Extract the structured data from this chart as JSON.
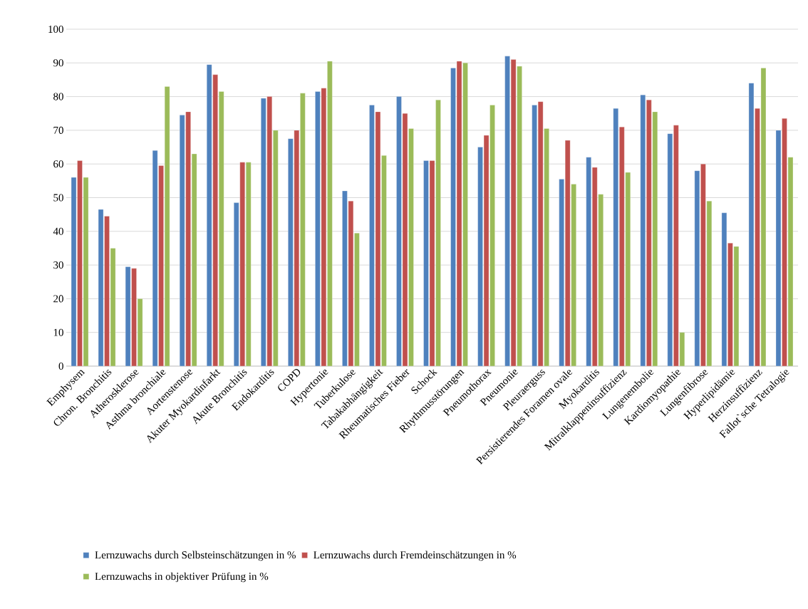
{
  "chart_data": {
    "type": "bar",
    "categories": [
      "Emphysem",
      "Chron. Bronchitis",
      "Atherosklerose",
      "Asthma bronchiale",
      "Aortenstenose",
      "Akuter Myokardinfarkt",
      "Akute Bronchitis",
      "Endokarditis",
      "COPD",
      "Hypertonie",
      "Tuberkulose",
      "Tabakabhängigkeit",
      "Rheumatisches Fieber",
      "Schock",
      "Rhythmusstörungen",
      "Pneumothorax",
      "Pneumonie",
      "Pleuraerguss",
      "Persistierendes Foramen ovale",
      "Myokarditis",
      "Mitralklappeninsuffizienz",
      "Lungenembolie",
      "Kardiomyopathie",
      "Lungenfibrose",
      "Hyperlipidämie",
      "Herzinsuffizienz",
      "Fallot`sche Tetralogie"
    ],
    "series": [
      {
        "name": "Lernzuwachs durch Selbsteinschätzungen in %",
        "color": "#4f81bd",
        "values": [
          56,
          46.5,
          29.5,
          64,
          74.5,
          89.5,
          48.5,
          79.5,
          67.5,
          81.5,
          52,
          77.5,
          80,
          61,
          88.5,
          65,
          92,
          77.5,
          55.5,
          62,
          76.5,
          80.5,
          69,
          58,
          45.5,
          84,
          70
        ]
      },
      {
        "name": "Lernzuwachs durch Fremdeinschätzungen in %",
        "color": "#c0504d",
        "values": [
          61,
          44.5,
          29,
          59.5,
          75.5,
          86.5,
          60.5,
          80,
          70,
          82.5,
          49,
          75.5,
          75,
          61,
          90.5,
          68.5,
          91,
          78.5,
          67,
          59,
          71,
          79,
          71.5,
          60,
          36.5,
          76.5,
          73.5
        ]
      },
      {
        "name": "Lernzuwachs in objektiver Prüfung in %",
        "color": "#9bbb59",
        "values": [
          56,
          35,
          20,
          83,
          63,
          81.5,
          60.5,
          70,
          81,
          90.5,
          39.5,
          62.5,
          70.5,
          79,
          90,
          77.5,
          89,
          70.5,
          54,
          51,
          57.5,
          75.5,
          10,
          49,
          35.5,
          88.5,
          62
        ]
      }
    ],
    "ylim": [
      0,
      100
    ],
    "yticks": [
      0,
      10,
      20,
      30,
      40,
      50,
      60,
      70,
      80,
      90,
      100
    ],
    "grid": "y",
    "legend": "bottom"
  }
}
